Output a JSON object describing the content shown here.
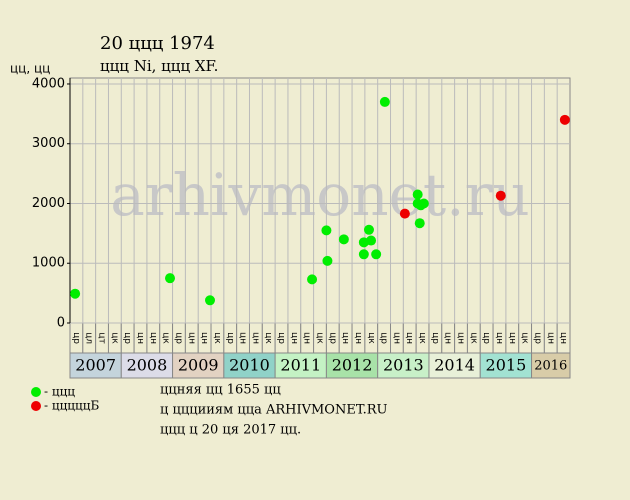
{
  "chart_data": {
    "type": "scatter",
    "title": "20 ццц 1974",
    "subtitle": "ццц Ni, ццц XF.",
    "y_label": "цц, цц",
    "watermark": "arhivmonet.ru",
    "xlim": [
      2007,
      2016.75
    ],
    "ylim": [
      0,
      4100
    ],
    "yticks": [
      0,
      1000,
      2000,
      3000,
      4000
    ],
    "grid": true,
    "quarter_labels": [
      "цр",
      "цл",
      "цт",
      "цк",
      "цр",
      "цн",
      "цн",
      "цк",
      "цр",
      "цн",
      "цн",
      "цк",
      "цр",
      "цн",
      "цн",
      "цк",
      "цр",
      "цн",
      "цн",
      "цк",
      "цр",
      "цн",
      "цн",
      "цк",
      "цр",
      "цн",
      "цн",
      "цк",
      "цр",
      "цн",
      "цн",
      "цк",
      "цр",
      "цн",
      "цн",
      "цк",
      "цр",
      "цн",
      "цн"
    ],
    "year_bands": [
      {
        "name": "2007",
        "color": "#c4d4dc"
      },
      {
        "name": "2008",
        "color": "#dcdce8"
      },
      {
        "name": "2009",
        "color": "#e2d2c2"
      },
      {
        "name": "2010",
        "color": "#90d2c8"
      },
      {
        "name": "2011",
        "color": "#c4f2c4"
      },
      {
        "name": "2012",
        "color": "#a8e2a8"
      },
      {
        "name": "2013",
        "color": "#c8f0c8"
      },
      {
        "name": "2014",
        "color": "#e8f0d8"
      },
      {
        "name": "2015",
        "color": "#a2e2d2"
      },
      {
        "name": "2016",
        "color": "#d8cca8"
      }
    ],
    "series": [
      {
        "name": "- ццц",
        "color": "#00ee00",
        "x": [
          2007.1,
          2008.95,
          2009.73,
          2011.72,
          2012.0,
          2012.02,
          2012.34,
          2012.73,
          2012.73,
          2012.83,
          2012.87,
          2012.97,
          2013.14,
          2013.78,
          2013.78,
          2013.84,
          2013.9,
          2013.82
        ],
        "values": [
          490,
          750,
          380,
          730,
          1550,
          1040,
          1400,
          1350,
          1150,
          1560,
          1380,
          1150,
          3700,
          2150,
          2000,
          1970,
          2000,
          1670
        ]
      },
      {
        "name": "- цццццБ",
        "color": "#ee0000",
        "x": [
          2013.53,
          2015.4,
          2016.65
        ],
        "values": [
          1830,
          2130,
          3400
        ]
      }
    ],
    "footer": [
      "ццняя цц 1655 цц",
      "ц цццииям ццa ARHIVMONET.RU",
      "ццц ц 20 ця 2017 цц."
    ]
  }
}
